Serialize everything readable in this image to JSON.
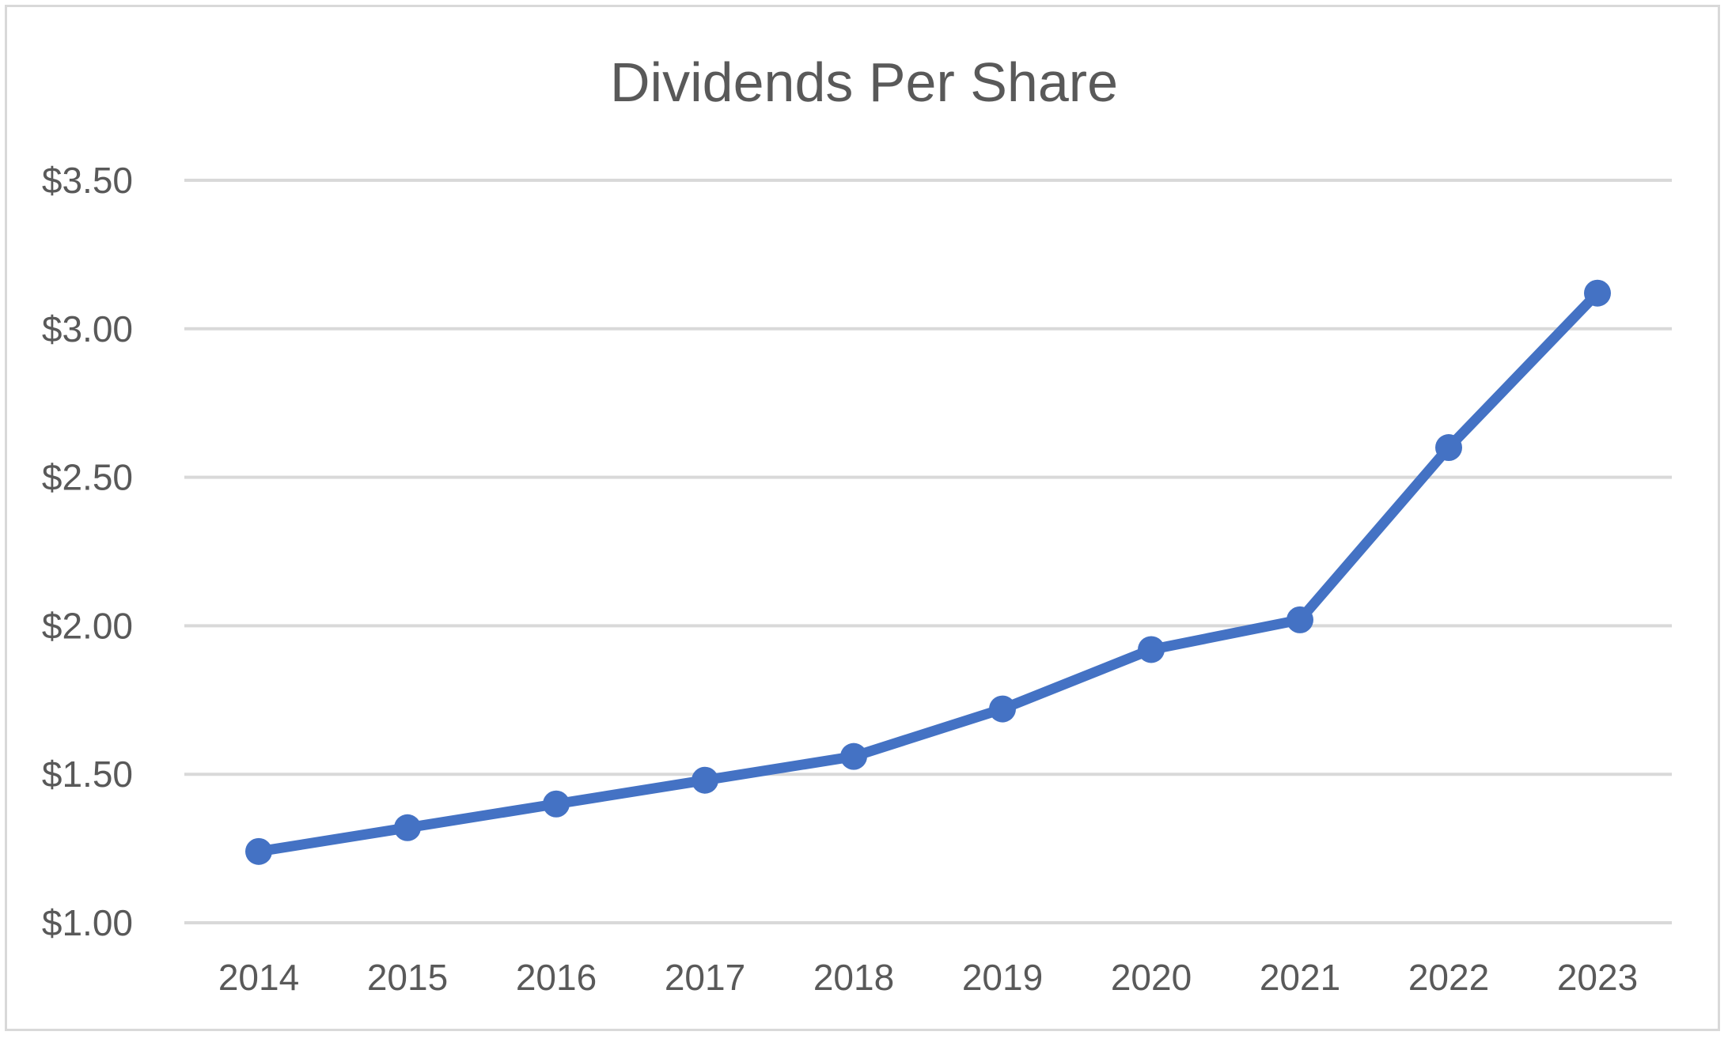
{
  "chart_data": {
    "type": "line",
    "title": "Dividends Per Share",
    "xlabel": "",
    "ylabel": "",
    "categories": [
      "2014",
      "2015",
      "2016",
      "2017",
      "2018",
      "2019",
      "2020",
      "2021",
      "2022",
      "2023"
    ],
    "series": [
      {
        "values": [
          1.24,
          1.32,
          1.4,
          1.48,
          1.56,
          1.72,
          1.92,
          2.02,
          2.6,
          3.12
        ],
        "color": "#4472C4"
      }
    ],
    "ylim": [
      1.0,
      3.5
    ],
    "yticks": [
      1.0,
      1.5,
      2.0,
      2.5,
      3.0,
      3.5
    ],
    "ytick_labels": [
      "$1.00",
      "$1.50",
      "$2.00",
      "$2.50",
      "$3.00",
      "$3.50"
    ],
    "grid": true,
    "legend": "none",
    "markers": true
  }
}
